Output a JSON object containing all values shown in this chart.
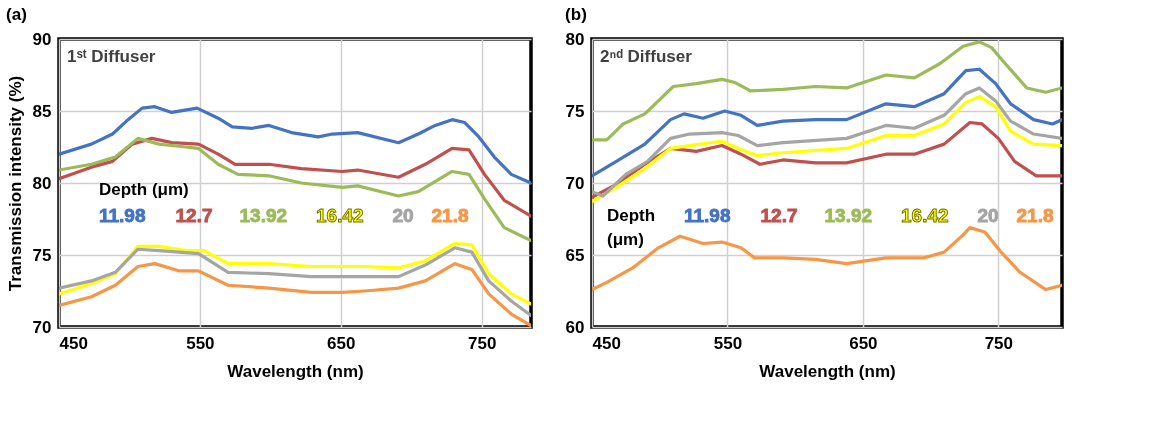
{
  "chart_data": [
    {
      "type": "line",
      "title": "(a)",
      "xlabel": "Wavelength (nm)",
      "ylabel": "Transmission intensity (%)",
      "legend_title": "Depth (μm)",
      "annotations": [
        "1ˢᵗ Diffuser"
      ],
      "xlim": [
        450,
        785
      ],
      "xticks": [
        450,
        550,
        650,
        750
      ],
      "ylim": [
        70,
        90
      ],
      "yticks": [
        70,
        75,
        80,
        85,
        90
      ],
      "grid": true,
      "legend": "left",
      "series": [
        {
          "name": "11.98",
          "color": "#4472c4",
          "x": [
            450,
            473,
            488,
            499,
            509,
            518,
            530,
            548,
            563,
            573,
            587,
            599,
            615,
            634,
            644,
            662,
            691,
            705,
            717,
            729,
            738,
            748,
            759,
            771,
            785
          ],
          "values": [
            82.0,
            82.7,
            83.4,
            84.4,
            85.2,
            85.3,
            84.9,
            85.2,
            84.5,
            83.9,
            83.8,
            84.0,
            83.5,
            83.2,
            83.4,
            83.5,
            82.8,
            83.4,
            84.0,
            84.4,
            84.2,
            83.2,
            81.8,
            80.6,
            80.0
          ]
        },
        {
          "name": "12.7",
          "color": "#c0504d",
          "x": [
            450,
            473,
            488,
            502,
            516,
            530,
            549,
            563,
            575,
            599,
            622,
            651,
            662,
            691,
            710,
            729,
            741,
            752,
            766,
            785
          ],
          "values": [
            80.3,
            81.1,
            81.5,
            82.7,
            83.1,
            82.8,
            82.7,
            82.0,
            81.3,
            81.3,
            81.0,
            80.8,
            80.9,
            80.4,
            81.3,
            82.4,
            82.3,
            80.6,
            78.8,
            77.7
          ]
        },
        {
          "name": "13.92",
          "color": "#9bbb59",
          "x": [
            450,
            473,
            490,
            506,
            521,
            540,
            549,
            563,
            577,
            599,
            622,
            651,
            662,
            691,
            705,
            729,
            741,
            752,
            766,
            785
          ],
          "values": [
            80.9,
            81.3,
            81.8,
            83.1,
            82.7,
            82.5,
            82.4,
            81.3,
            80.6,
            80.5,
            80.0,
            79.7,
            79.8,
            79.1,
            79.4,
            80.8,
            80.6,
            78.9,
            76.9,
            76.0
          ]
        },
        {
          "name": "16.42",
          "color": "#ffff00",
          "x": [
            450,
            473,
            490,
            506,
            521,
            540,
            553,
            570,
            599,
            629,
            651,
            667,
            691,
            710,
            731,
            743,
            755,
            771,
            785
          ],
          "values": [
            72.3,
            73.0,
            73.7,
            75.6,
            75.6,
            75.3,
            75.3,
            74.4,
            74.4,
            74.2,
            74.2,
            74.2,
            74.1,
            74.6,
            75.8,
            75.7,
            73.7,
            72.3,
            71.6
          ]
        },
        {
          "name": "20",
          "color": "#a5a5a5",
          "x": [
            450,
            473,
            490,
            506,
            521,
            549,
            570,
            599,
            629,
            651,
            667,
            691,
            710,
            731,
            743,
            755,
            771,
            785
          ],
          "values": [
            72.7,
            73.2,
            73.8,
            75.4,
            75.3,
            75.1,
            73.8,
            73.7,
            73.5,
            73.5,
            73.5,
            73.5,
            74.3,
            75.5,
            75.2,
            73.2,
            71.8,
            70.8
          ]
        },
        {
          "name": "21.8",
          "color": "#f79646",
          "x": [
            450,
            473,
            490,
            506,
            518,
            535,
            549,
            570,
            599,
            629,
            651,
            667,
            691,
            710,
            731,
            743,
            755,
            771,
            785
          ],
          "values": [
            71.5,
            72.1,
            72.9,
            74.2,
            74.4,
            73.9,
            73.9,
            72.9,
            72.7,
            72.4,
            72.4,
            72.5,
            72.7,
            73.2,
            74.4,
            74.0,
            72.3,
            70.9,
            70.1
          ]
        }
      ]
    },
    {
      "type": "line",
      "title": "(b)",
      "xlabel": "Wavelength (nm)",
      "legend_title": "Depth (μm)",
      "annotations": [
        "2ⁿᵈ Diffuser"
      ],
      "xlim": [
        450,
        797
      ],
      "xticks": [
        450,
        550,
        650,
        750
      ],
      "ylim": [
        60,
        80
      ],
      "yticks": [
        60,
        65,
        70,
        75,
        80
      ],
      "grid": true,
      "legend": "bottom",
      "series": [
        {
          "name": "11.98",
          "color": "#4472c4",
          "x": [
            450,
            468,
            489,
            508,
            518,
            532,
            548,
            560,
            572,
            591,
            615,
            638,
            667,
            688,
            710,
            726,
            736,
            748,
            759,
            776,
            790,
            797
          ],
          "values": [
            70.5,
            71.5,
            72.7,
            74.4,
            74.8,
            74.5,
            75.0,
            74.7,
            74.0,
            74.3,
            74.4,
            74.4,
            75.5,
            75.3,
            76.2,
            77.8,
            77.9,
            76.9,
            75.5,
            74.4,
            74.1,
            74.4
          ]
        },
        {
          "name": "12.7",
          "color": "#c0504d",
          "x": [
            450,
            468,
            489,
            508,
            527,
            546,
            560,
            574,
            591,
            615,
            638,
            667,
            688,
            710,
            729,
            738,
            750,
            762,
            778,
            797
          ],
          "values": [
            69.0,
            69.9,
            71.3,
            72.4,
            72.2,
            72.6,
            72.0,
            71.3,
            71.6,
            71.4,
            71.4,
            72.0,
            72.0,
            72.7,
            74.2,
            74.1,
            73.1,
            71.5,
            70.5,
            70.5
          ]
        },
        {
          "name": "13.92",
          "color": "#9bbb59",
          "x": [
            450,
            461,
            473,
            489,
            499,
            510,
            527,
            546,
            555,
            567,
            591,
            615,
            638,
            667,
            688,
            707,
            724,
            736,
            745,
            755,
            771,
            785,
            797
          ],
          "values": [
            73.0,
            73.0,
            74.1,
            74.8,
            75.7,
            76.7,
            76.9,
            77.2,
            77.0,
            76.4,
            76.5,
            76.7,
            76.6,
            77.5,
            77.3,
            78.3,
            79.5,
            79.8,
            79.4,
            78.3,
            76.6,
            76.3,
            76.6
          ]
        },
        {
          "name": "16.42",
          "color": "#ffff00",
          "x": [
            450,
            468,
            489,
            508,
            522,
            546,
            558,
            572,
            591,
            638,
            667,
            688,
            710,
            726,
            736,
            748,
            759,
            776,
            797
          ],
          "values": [
            68.7,
            69.7,
            71.0,
            72.4,
            72.6,
            72.9,
            72.4,
            71.9,
            72.1,
            72.4,
            73.3,
            73.3,
            74.1,
            75.6,
            76.0,
            75.3,
            73.6,
            72.7,
            72.6
          ]
        },
        {
          "name": "20",
          "color": "#a5a5a5",
          "x": [
            450,
            458,
            475,
            491,
            508,
            522,
            546,
            558,
            572,
            591,
            638,
            667,
            688,
            710,
            726,
            736,
            748,
            759,
            776,
            797
          ],
          "values": [
            69.4,
            69.1,
            70.6,
            71.5,
            73.1,
            73.4,
            73.5,
            73.3,
            72.6,
            72.8,
            73.1,
            74.0,
            73.8,
            74.7,
            76.2,
            76.6,
            75.7,
            74.3,
            73.4,
            73.1
          ]
        },
        {
          "name": "21.8",
          "color": "#f79646",
          "x": [
            450,
            461,
            480,
            499,
            515,
            532,
            546,
            560,
            570,
            591,
            615,
            638,
            667,
            695,
            710,
            724,
            729,
            740,
            752,
            766,
            785,
            797
          ],
          "values": [
            62.6,
            63.1,
            64.1,
            65.5,
            66.3,
            65.8,
            65.9,
            65.5,
            64.8,
            64.8,
            64.7,
            64.4,
            64.8,
            64.8,
            65.2,
            66.4,
            66.9,
            66.6,
            65.2,
            63.8,
            62.6,
            62.9
          ]
        }
      ]
    }
  ]
}
